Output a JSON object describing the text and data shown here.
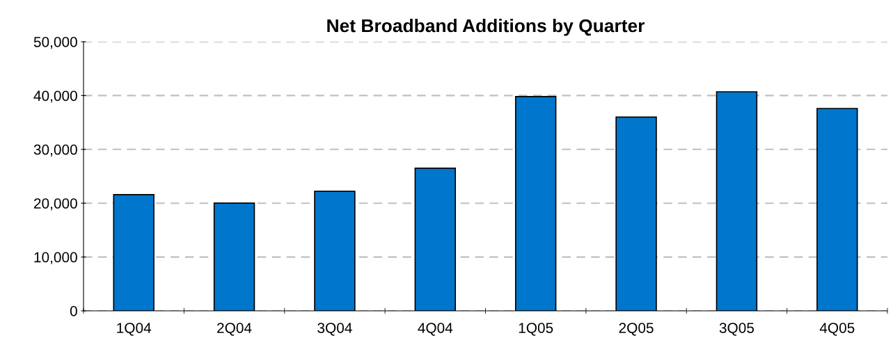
{
  "chart_data": {
    "type": "bar",
    "title": "Net Broadband Additions by Quarter",
    "categories": [
      "1Q04",
      "2Q04",
      "3Q04",
      "4Q04",
      "1Q05",
      "2Q05",
      "3Q05",
      "4Q05"
    ],
    "values": [
      21600,
      20000,
      22200,
      26500,
      39800,
      36000,
      40700,
      37600
    ],
    "color": "#0077cc",
    "ylim": [
      0,
      50000
    ],
    "yticks": [
      {
        "value": 0,
        "label": "0"
      },
      {
        "value": 10000,
        "label": "10,000"
      },
      {
        "value": 20000,
        "label": "20,000"
      },
      {
        "value": 30000,
        "label": "30,000"
      },
      {
        "value": 40000,
        "label": "40,000"
      },
      {
        "value": 50000,
        "label": "50,000"
      }
    ],
    "grid": "y",
    "line_style": "dashed"
  }
}
